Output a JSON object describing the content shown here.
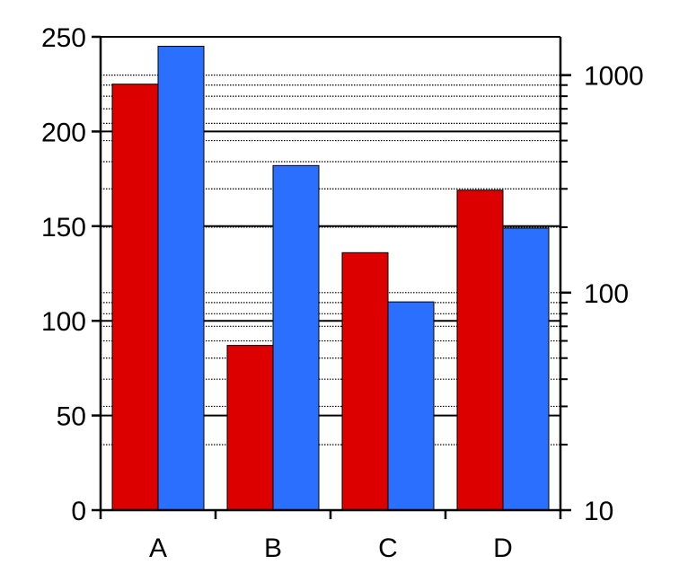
{
  "chart_data": {
    "type": "bar",
    "title": "",
    "xlabel": "",
    "ylabel": "",
    "y2label": "",
    "categories": [
      "A",
      "B",
      "C",
      "D"
    ],
    "series": [
      {
        "values": [
          225,
          87,
          136,
          169
        ],
        "color": "#dd0000"
      },
      {
        "values": [
          245,
          182,
          110,
          149
        ],
        "color": "#2a6fff"
      }
    ],
    "ylim": [
      0,
      250
    ],
    "yticks": [
      {
        "value": 0,
        "label": "0"
      },
      {
        "value": 50,
        "label": "50"
      },
      {
        "value": 100,
        "label": "100"
      },
      {
        "value": 150,
        "label": "150"
      },
      {
        "value": 200,
        "label": "200"
      },
      {
        "value": 250,
        "label": "250"
      }
    ],
    "y2": {
      "scale": "log",
      "lim": [
        10,
        1500
      ],
      "major_ticks": [
        {
          "value": 10,
          "label": "10"
        },
        {
          "value": 100,
          "label": "100"
        },
        {
          "value": 1000,
          "label": "1000"
        }
      ],
      "minor_ticks": [
        20,
        30,
        40,
        50,
        60,
        70,
        80,
        90,
        200,
        300,
        400,
        500,
        600,
        700,
        800,
        900
      ]
    },
    "grid": {
      "major_from": "left axis",
      "minor_dotted_from": "right log axis"
    },
    "legend": "none"
  }
}
